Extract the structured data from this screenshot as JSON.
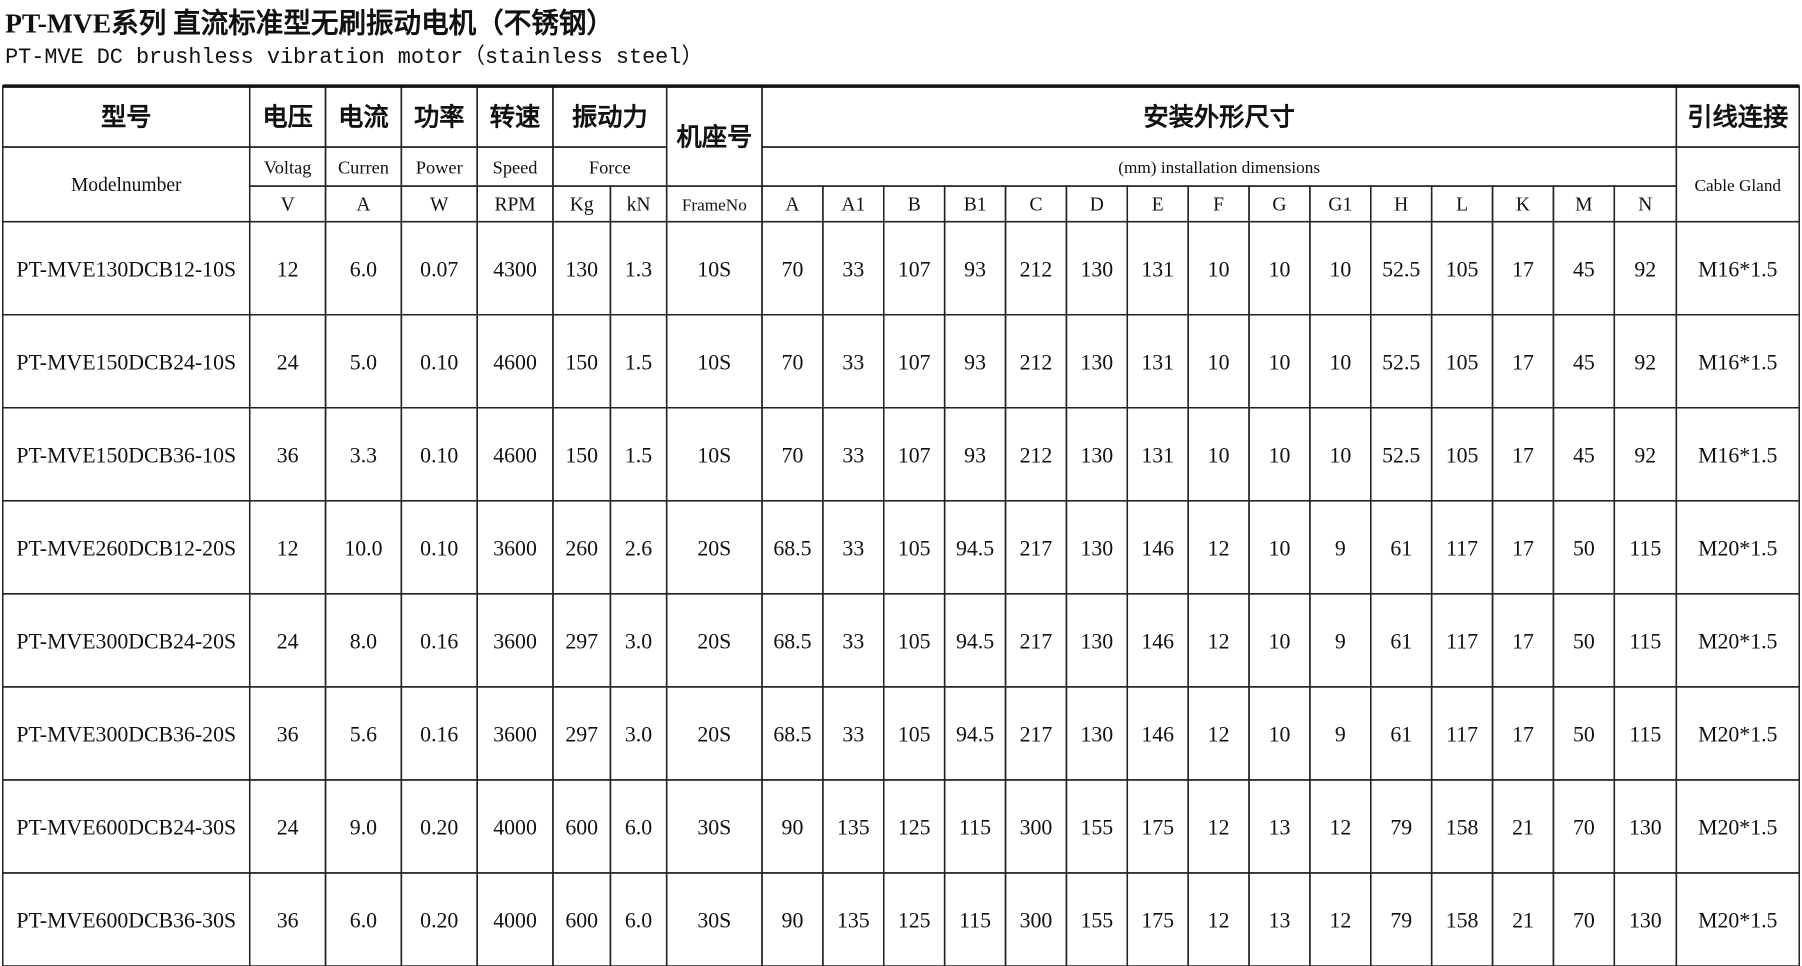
{
  "title": "PT-MVE系列 直流标准型无刷振动电机（不锈钢）",
  "subtitle": "PT-MVE DC brushless vibration motor（stainless steel）",
  "table": {
    "header_cells": [
      "型号",
      "Modelnumber",
      "电压",
      "Voltag",
      "V",
      "电流",
      "Curren",
      "A",
      "功率",
      "Power",
      "W",
      "转速",
      "Speed",
      "RPM",
      "振动力",
      "Force",
      "Kg",
      "kN",
      "机座号",
      "FrameNo",
      "安装外形尺寸",
      "(mm) installation dimensions",
      "引线连接",
      "Cable Gland"
    ],
    "dim_columns": [
      "A",
      "A1",
      "B",
      "B1",
      "C",
      "D",
      "E",
      "F",
      "G",
      "G1",
      "H",
      "L",
      "K",
      "M",
      "N"
    ],
    "rows": [
      [
        "PT-MVE130DCB12-10S",
        "12",
        "6.0",
        "0.07",
        "4300",
        "130",
        "1.3",
        "10S",
        "70",
        "33",
        "107",
        "93",
        "212",
        "130",
        "131",
        "10",
        "10",
        "10",
        "52.5",
        "105",
        "17",
        "45",
        "92",
        "M16*1.5"
      ],
      [
        "PT-MVE150DCB24-10S",
        "24",
        "5.0",
        "0.10",
        "4600",
        "150",
        "1.5",
        "10S",
        "70",
        "33",
        "107",
        "93",
        "212",
        "130",
        "131",
        "10",
        "10",
        "10",
        "52.5",
        "105",
        "17",
        "45",
        "92",
        "M16*1.5"
      ],
      [
        "PT-MVE150DCB36-10S",
        "36",
        "3.3",
        "0.10",
        "4600",
        "150",
        "1.5",
        "10S",
        "70",
        "33",
        "107",
        "93",
        "212",
        "130",
        "131",
        "10",
        "10",
        "10",
        "52.5",
        "105",
        "17",
        "45",
        "92",
        "M16*1.5"
      ],
      [
        "PT-MVE260DCB12-20S",
        "12",
        "10.0",
        "0.10",
        "3600",
        "260",
        "2.6",
        "20S",
        "68.5",
        "33",
        "105",
        "94.5",
        "217",
        "130",
        "146",
        "12",
        "10",
        "9",
        "61",
        "117",
        "17",
        "50",
        "115",
        "M20*1.5"
      ],
      [
        "PT-MVE300DCB24-20S",
        "24",
        "8.0",
        "0.16",
        "3600",
        "297",
        "3.0",
        "20S",
        "68.5",
        "33",
        "105",
        "94.5",
        "217",
        "130",
        "146",
        "12",
        "10",
        "9",
        "61",
        "117",
        "17",
        "50",
        "115",
        "M20*1.5"
      ],
      [
        "PT-MVE300DCB36-20S",
        "36",
        "5.6",
        "0.16",
        "3600",
        "297",
        "3.0",
        "20S",
        "68.5",
        "33",
        "105",
        "94.5",
        "217",
        "130",
        "146",
        "12",
        "10",
        "9",
        "61",
        "117",
        "17",
        "50",
        "115",
        "M20*1.5"
      ],
      [
        "PT-MVE600DCB24-30S",
        "24",
        "9.0",
        "0.20",
        "4000",
        "600",
        "6.0",
        "30S",
        "90",
        "135",
        "125",
        "115",
        "300",
        "155",
        "175",
        "12",
        "13",
        "12",
        "79",
        "158",
        "21",
        "70",
        "130",
        "M20*1.5"
      ],
      [
        "PT-MVE600DCB36-30S",
        "36",
        "6.0",
        "0.20",
        "4000",
        "600",
        "6.0",
        "30S",
        "90",
        "135",
        "125",
        "115",
        "300",
        "155",
        "175",
        "12",
        "13",
        "12",
        "79",
        "158",
        "21",
        "70",
        "130",
        "M20*1.5"
      ]
    ]
  }
}
